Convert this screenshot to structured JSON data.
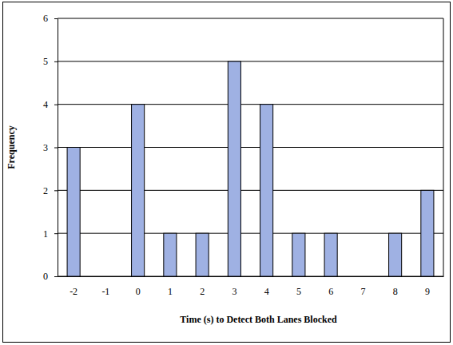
{
  "chart_data": {
    "type": "bar",
    "xlabel": "Time (s) to Detect Both Lanes Blocked",
    "ylabel": "Frequency",
    "categories": [
      "-2",
      "-1",
      "0",
      "1",
      "2",
      "3",
      "4",
      "5",
      "6",
      "7",
      "8",
      "9"
    ],
    "values": [
      3,
      0,
      4,
      1,
      1,
      5,
      4,
      1,
      1,
      0,
      1,
      2
    ],
    "color": "#9fb1e3",
    "ylim": [
      0,
      6
    ],
    "yticks": [
      0,
      1,
      2,
      3,
      4,
      5,
      6
    ],
    "grid": true
  }
}
